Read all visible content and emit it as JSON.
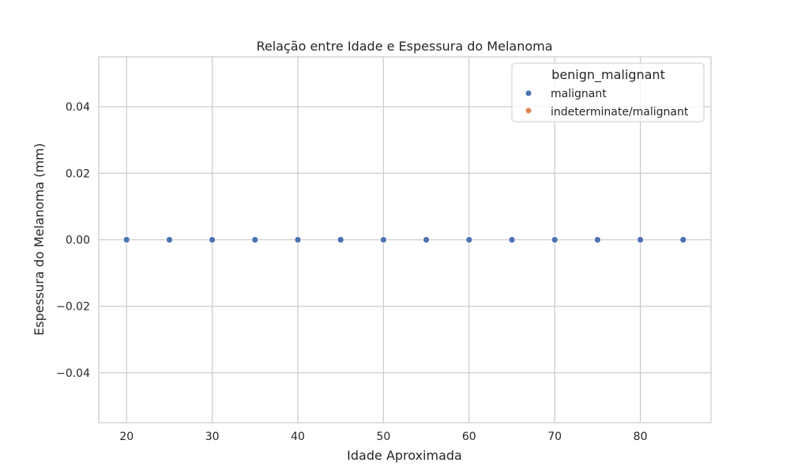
{
  "chart_data": {
    "type": "scatter",
    "title": "Relação entre Idade e Espessura do Melanoma",
    "xlabel": "Idade Aproximada",
    "ylabel": "Espessura do Melanoma (mm)",
    "xlim": [
      16.75,
      88.25
    ],
    "ylim": [
      -0.055,
      0.055
    ],
    "xticks": [
      20,
      30,
      40,
      50,
      60,
      70,
      80
    ],
    "xtick_labels": [
      "20",
      "30",
      "40",
      "50",
      "60",
      "70",
      "80"
    ],
    "yticks": [
      -0.04,
      -0.02,
      0.0,
      0.02,
      0.04
    ],
    "ytick_labels": [
      "−0.04",
      "−0.02",
      "0.00",
      "0.02",
      "0.04"
    ],
    "grid": true,
    "legend": {
      "title": "benign_malignant",
      "placement": "top-right",
      "entries": [
        {
          "label": "malignant",
          "color": "#4c72b0"
        },
        {
          "label": "indeterminate/malignant",
          "color": "#dd8452"
        }
      ]
    },
    "series": [
      {
        "name": "malignant",
        "color": "#4c72b0",
        "x": [
          20,
          25,
          30,
          35,
          40,
          45,
          50,
          55,
          60,
          65,
          70,
          75,
          80,
          85
        ],
        "y": [
          0,
          0,
          0,
          0,
          0,
          0,
          0,
          0,
          0,
          0,
          0,
          0,
          0,
          0
        ]
      }
    ]
  }
}
